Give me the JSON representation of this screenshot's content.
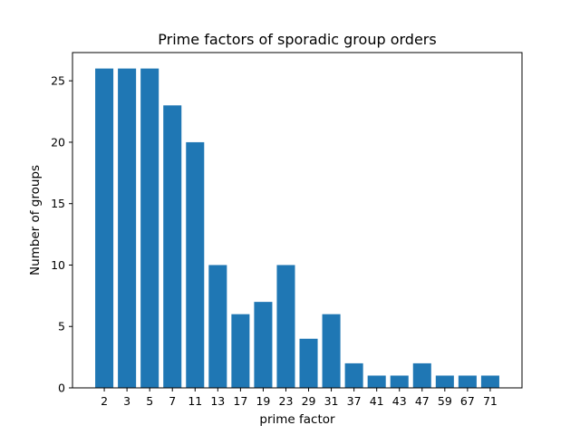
{
  "chart_data": {
    "type": "bar",
    "title": "Prime factors of sporadic group orders",
    "xlabel": "prime factor",
    "ylabel": "Number of groups",
    "categories": [
      "2",
      "3",
      "5",
      "7",
      "11",
      "13",
      "17",
      "19",
      "23",
      "29",
      "31",
      "37",
      "41",
      "43",
      "47",
      "59",
      "67",
      "71"
    ],
    "values": [
      26,
      26,
      26,
      23,
      20,
      10,
      6,
      7,
      10,
      4,
      6,
      2,
      1,
      1,
      2,
      1,
      1,
      1
    ],
    "ylim": [
      0,
      27.3
    ],
    "yticks": [
      0,
      5,
      10,
      15,
      20,
      25
    ],
    "grid": false,
    "bar_color": "#1f77b4"
  }
}
